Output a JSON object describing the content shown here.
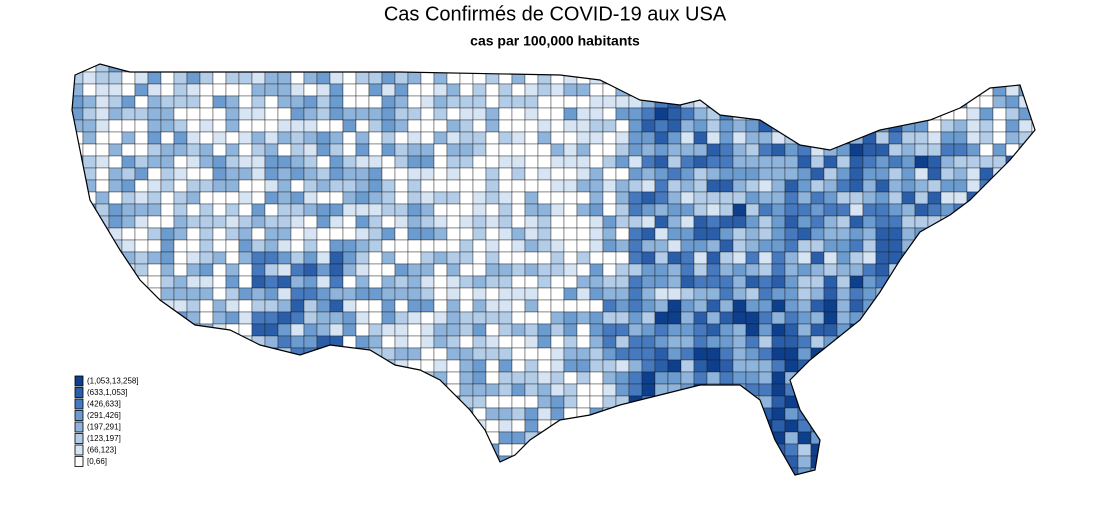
{
  "title": "Cas Confirmés de COVID-19 aux USA",
  "subtitle": "cas par 100,000 habitants",
  "legend": {
    "items": [
      {
        "label": "(1,053,13,258]",
        "color": "#0d3f8c"
      },
      {
        "label": "(633,1,053]",
        "color": "#2b5ea8"
      },
      {
        "label": "(426,633]",
        "color": "#4679bd"
      },
      {
        "label": "(291,426]",
        "color": "#6b9bcf"
      },
      {
        "label": "(197,291]",
        "color": "#8fb4dc"
      },
      {
        "label": "(123,197]",
        "color": "#b3cce8"
      },
      {
        "label": "(66,123]",
        "color": "#d6e4f4"
      },
      {
        "label": "[0,66]",
        "color": "#ffffff"
      }
    ]
  }
}
